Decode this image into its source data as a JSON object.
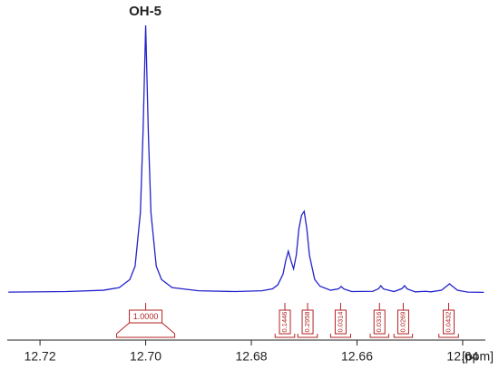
{
  "chart_data": {
    "type": "line",
    "annotation": "OH-5",
    "xlabel": "[ppm]",
    "xlim": [
      12.7262,
      12.6357
    ],
    "xticks": [
      12.72,
      {
        "value": 12.7,
        "label": "12.70"
      },
      12.68,
      12.66,
      12.64
    ],
    "series": [
      {
        "color": "#2222cc",
        "x": [
          12.726,
          12.715,
          12.708,
          12.705,
          12.703,
          12.702,
          12.701,
          12.7005,
          12.7,
          12.6995,
          12.699,
          12.698,
          12.697,
          12.695,
          12.69,
          12.683,
          12.678,
          12.676,
          12.675,
          12.674,
          12.6735,
          12.673,
          12.6725,
          12.672,
          12.6715,
          12.671,
          12.6705,
          12.67,
          12.6695,
          12.669,
          12.668,
          12.667,
          12.665,
          12.6635,
          12.663,
          12.6625,
          12.661,
          12.657,
          12.6559,
          12.6555,
          12.655,
          12.653,
          12.6515,
          12.651,
          12.6505,
          12.649,
          12.647,
          12.646,
          12.644,
          12.643,
          12.6425,
          12.642,
          12.641,
          12.639,
          12.636
        ],
        "values": [
          0.3,
          0.5,
          1,
          2,
          5,
          10,
          30,
          60,
          100,
          60,
          30,
          10,
          5,
          2,
          0.8,
          0.5,
          0.8,
          1.5,
          3,
          7,
          12,
          15.6,
          12,
          9,
          14,
          24,
          29,
          30.5,
          24,
          14,
          5,
          2.5,
          1,
          1.5,
          2.4,
          1.5,
          0.5,
          0.6,
          1.6,
          2.7,
          1.5,
          0.5,
          1.6,
          2.7,
          1.5,
          0.4,
          0.6,
          0.4,
          1,
          2.6,
          3.4,
          2.6,
          1,
          0.3,
          0.2
        ]
      }
    ],
    "integrals": {
      "color": "#b22222",
      "values": [
        1.0,
        0.1446,
        0.2958,
        0.0314,
        0.0316,
        0.0269,
        0.0432
      ],
      "value_labels": [
        "1.0000",
        "0.1446",
        "0.2958",
        "0.0314",
        "0.0316",
        "0.0269",
        "0.0432"
      ],
      "ranges": [
        [
          12.7055,
          12.6945
        ],
        [
          12.6755,
          12.6718
        ],
        [
          12.6712,
          12.6675
        ],
        [
          12.665,
          12.6612
        ],
        [
          12.6575,
          12.654
        ],
        [
          12.653,
          12.6495
        ],
        [
          12.6445,
          12.6408
        ]
      ]
    }
  }
}
